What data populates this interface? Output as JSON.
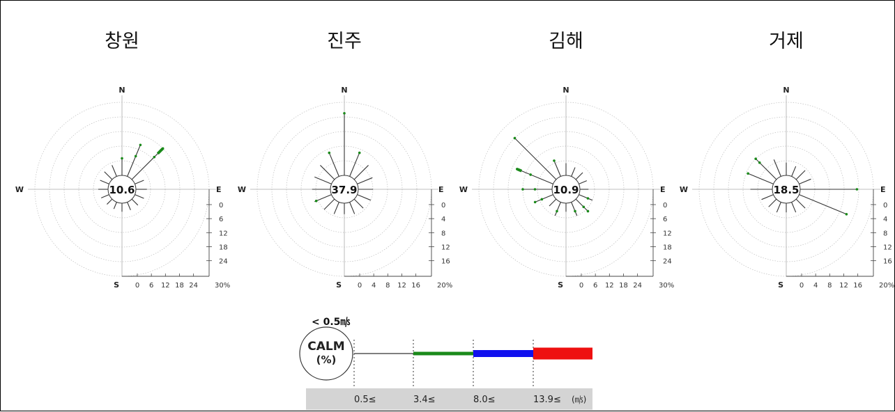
{
  "chart_data": [
    {
      "type": "wind-rose",
      "title": "창원",
      "calm": "10.6",
      "directions": [
        "N",
        "E",
        "S",
        "W"
      ],
      "rmax": 30,
      "ticks": [
        0,
        6,
        12,
        18,
        24
      ],
      "max_label": "30%",
      "tick_labels": [
        "0",
        "6",
        "12",
        "18",
        "24"
      ],
      "sectors": [
        {
          "bearing": 0,
          "lines": [
            7.0
          ]
        },
        {
          "bearing": 22.5,
          "lines": [
            9.0,
            14.0
          ]
        },
        {
          "bearing": 45,
          "lines": [
            13.0,
            18.0
          ],
          "thick": [
            15.0,
            18.0
          ]
        },
        {
          "bearing": 67.5,
          "lines": [
            4.0
          ]
        },
        {
          "bearing": 90,
          "lines": [
            4.5
          ]
        },
        {
          "bearing": 112.5,
          "lines": [
            4.0
          ]
        },
        {
          "bearing": 135,
          "lines": [
            3.5
          ]
        },
        {
          "bearing": 157.5,
          "lines": [
            3.5
          ]
        },
        {
          "bearing": 180,
          "lines": [
            3.5
          ]
        },
        {
          "bearing": 202.5,
          "lines": [
            3.0
          ]
        },
        {
          "bearing": 225,
          "lines": [
            3.0
          ]
        },
        {
          "bearing": 247.5,
          "lines": [
            3.5
          ]
        },
        {
          "bearing": 270,
          "lines": [
            4.0
          ]
        },
        {
          "bearing": 292.5,
          "lines": [
            4.0
          ]
        },
        {
          "bearing": 315,
          "lines": [
            4.5
          ]
        },
        {
          "bearing": 337.5,
          "lines": [
            5.0
          ]
        }
      ]
    },
    {
      "type": "wind-rose",
      "title": "진주",
      "calm": "37.9",
      "directions": [
        "N",
        "E",
        "S",
        "W"
      ],
      "rmax": 20,
      "ticks": [
        0,
        4,
        8,
        12,
        16
      ],
      "max_label": "20%",
      "tick_labels": [
        "0",
        "4",
        "8",
        "12",
        "16"
      ],
      "sectors": [
        {
          "bearing": 0,
          "lines": [
            17.0
          ]
        },
        {
          "bearing": 22.5,
          "lines": [
            7.0
          ]
        },
        {
          "bearing": 45,
          "lines": [
            5.5
          ]
        },
        {
          "bearing": 67.5,
          "lines": [
            4.5
          ]
        },
        {
          "bearing": 90,
          "lines": [
            4.0
          ]
        },
        {
          "bearing": 112.5,
          "lines": [
            4.0
          ]
        },
        {
          "bearing": 135,
          "lines": [
            3.5
          ]
        },
        {
          "bearing": 157.5,
          "lines": [
            3.5
          ]
        },
        {
          "bearing": 180,
          "lines": [
            3.0
          ]
        },
        {
          "bearing": 202.5,
          "lines": [
            3.5
          ]
        },
        {
          "bearing": 225,
          "lines": [
            4.0
          ]
        },
        {
          "bearing": 247.5,
          "lines": [
            4.5,
            5.0
          ]
        },
        {
          "bearing": 270,
          "lines": [
            5.0
          ]
        },
        {
          "bearing": 292.5,
          "lines": [
            5.0
          ]
        },
        {
          "bearing": 315,
          "lines": [
            5.5
          ]
        },
        {
          "bearing": 337.5,
          "lines": [
            7.0
          ]
        }
      ]
    },
    {
      "type": "wind-rose",
      "title": "김해",
      "calm": "10.9",
      "directions": [
        "N",
        "E",
        "S",
        "W"
      ],
      "rmax": 30,
      "ticks": [
        0,
        6,
        12,
        18,
        24
      ],
      "max_label": "30%",
      "tick_labels": [
        "0",
        "6",
        "12",
        "18",
        "24"
      ],
      "sectors": [
        {
          "bearing": 0,
          "lines": [
            5.0
          ]
        },
        {
          "bearing": 22.5,
          "lines": [
            4.0
          ]
        },
        {
          "bearing": 45,
          "lines": [
            4.0
          ]
        },
        {
          "bearing": 67.5,
          "lines": [
            3.5
          ]
        },
        {
          "bearing": 90,
          "lines": [
            3.5
          ]
        },
        {
          "bearing": 112.5,
          "lines": [
            4.0,
            6.0
          ]
        },
        {
          "bearing": 135,
          "lines": [
            4.5,
            7.0
          ]
        },
        {
          "bearing": 157.5,
          "lines": [
            4.0,
            6.0
          ]
        },
        {
          "bearing": 180,
          "lines": [
            3.5
          ]
        },
        {
          "bearing": 202.5,
          "lines": [
            4.0,
            6.0
          ]
        },
        {
          "bearing": 225,
          "lines": [
            4.0
          ]
        },
        {
          "bearing": 247.5,
          "lines": [
            5.0,
            8.0
          ]
        },
        {
          "bearing": 270,
          "lines": [
            7.0,
            12.0
          ]
        },
        {
          "bearing": 292.5,
          "lines": [
            10.0,
            16.0
          ],
          "thick": [
            14.0,
            16.0
          ]
        },
        {
          "bearing": 315,
          "lines": [
            24.0
          ]
        },
        {
          "bearing": 337.5,
          "lines": [
            7.0
          ]
        }
      ]
    },
    {
      "type": "wind-rose",
      "title": "거제",
      "calm": "18.5",
      "directions": [
        "N",
        "E",
        "S",
        "W"
      ],
      "rmax": 20,
      "ticks": [
        0,
        4,
        8,
        12,
        16
      ],
      "max_label": "20%",
      "tick_labels": [
        "0",
        "4",
        "8",
        "12",
        "16"
      ],
      "sectors": [
        {
          "bearing": 0,
          "lines": [
            3.5
          ]
        },
        {
          "bearing": 22.5,
          "lines": [
            3.0
          ]
        },
        {
          "bearing": 45,
          "lines": [
            3.5
          ]
        },
        {
          "bearing": 67.5,
          "lines": [
            3.5
          ]
        },
        {
          "bearing": 90,
          "lines": [
            15.5
          ]
        },
        {
          "bearing": 112.5,
          "lines": [
            14.0
          ]
        },
        {
          "bearing": 135,
          "lines": [
            3.5
          ]
        },
        {
          "bearing": 157.5,
          "lines": [
            3.0
          ]
        },
        {
          "bearing": 180,
          "lines": [
            2.5
          ]
        },
        {
          "bearing": 202.5,
          "lines": [
            3.0
          ]
        },
        {
          "bearing": 225,
          "lines": [
            3.0
          ]
        },
        {
          "bearing": 247.5,
          "lines": [
            3.5
          ]
        },
        {
          "bearing": 270,
          "lines": [
            6.0
          ]
        },
        {
          "bearing": 292.5,
          "lines": [
            7.5
          ]
        },
        {
          "bearing": 315,
          "lines": [
            6.5,
            8.0
          ]
        },
        {
          "bearing": 337.5,
          "lines": [
            5.0
          ]
        }
      ]
    }
  ],
  "legend": {
    "calm_threshold": "< 0.5㎧",
    "calm_label_1": "CALM",
    "calm_label_2": "(%)",
    "classes": [
      "0.5≤",
      "3.4≤",
      "8.0≤",
      "13.9≤"
    ],
    "unit": "(㎧)",
    "colors": [
      "#333333",
      "#1a8a1a",
      "#1010ee",
      "#ee1010"
    ]
  }
}
